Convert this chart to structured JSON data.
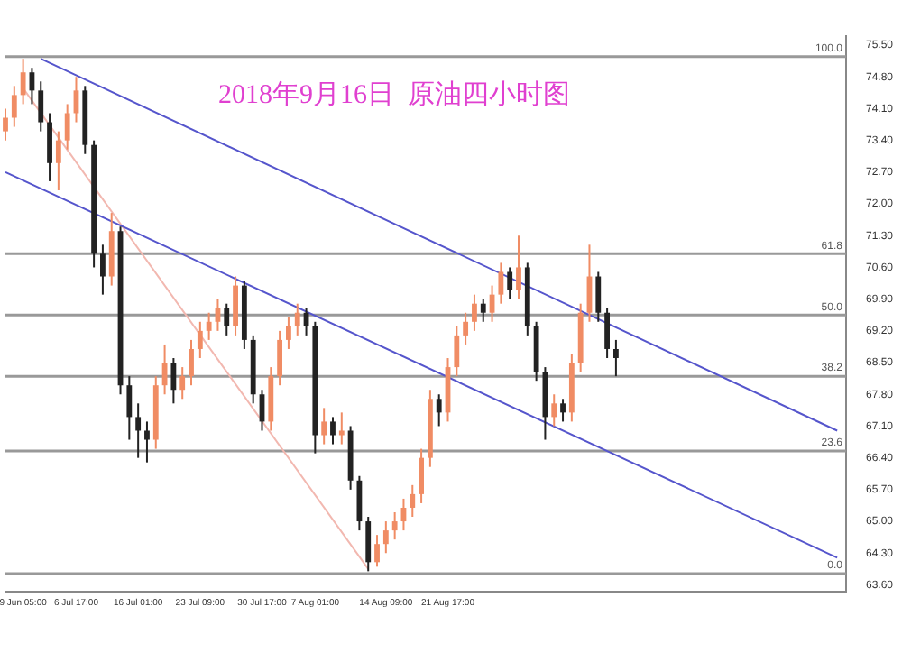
{
  "chart_data": {
    "type": "candlestick",
    "title": "2018年9月16日  原油四小时图",
    "categories": [
      null,
      null,
      "9 Jun 05:00",
      null,
      null,
      null,
      null,
      null,
      "6 Jul 17:00",
      null,
      null,
      null,
      null,
      null,
      null,
      "16 Jul 01:00",
      null,
      null,
      null,
      null,
      null,
      null,
      "23 Jul 09:00",
      null,
      null,
      null,
      null,
      null,
      null,
      "30 Jul 17:00",
      null,
      null,
      null,
      null,
      null,
      "7 Aug 01:00",
      null,
      null,
      null,
      null,
      null,
      null,
      null,
      "14 Aug 09:00",
      null,
      null,
      null,
      null,
      null,
      null,
      "21 Aug 17:00",
      null,
      null,
      null,
      null,
      null,
      null,
      null,
      null,
      null,
      null,
      null,
      null,
      null,
      null,
      null,
      null,
      null,
      null,
      null,
      null,
      null,
      null,
      null,
      null,
      null,
      null,
      null,
      null,
      null,
      null,
      null,
      null,
      null,
      null,
      null,
      null,
      null,
      null,
      null,
      null,
      null,
      null,
      null,
      null,
      null
    ],
    "ohlc": [
      [
        73.6,
        74.1,
        73.4,
        73.9
      ],
      [
        73.9,
        74.6,
        73.7,
        74.4
      ],
      [
        74.4,
        75.2,
        74.2,
        74.9
      ],
      [
        74.9,
        75.0,
        74.2,
        74.5
      ],
      [
        74.5,
        74.7,
        73.6,
        73.8
      ],
      [
        73.8,
        74.0,
        72.5,
        72.9
      ],
      [
        72.9,
        73.6,
        72.3,
        73.4
      ],
      [
        73.4,
        74.2,
        73.2,
        74.0
      ],
      [
        74.0,
        74.8,
        73.8,
        74.5
      ],
      [
        74.5,
        74.6,
        73.1,
        73.3
      ],
      [
        73.3,
        73.4,
        70.6,
        70.9
      ],
      [
        70.9,
        71.1,
        70.0,
        70.4
      ],
      [
        70.4,
        71.8,
        70.2,
        71.4
      ],
      [
        71.4,
        71.5,
        67.8,
        68.0
      ],
      [
        68.0,
        68.2,
        66.8,
        67.3
      ],
      [
        67.3,
        67.6,
        66.4,
        67.0
      ],
      [
        67.0,
        67.2,
        66.3,
        66.8
      ],
      [
        66.8,
        68.2,
        66.6,
        68.0
      ],
      [
        68.0,
        68.9,
        67.8,
        68.5
      ],
      [
        68.5,
        68.6,
        67.6,
        67.9
      ],
      [
        67.9,
        68.4,
        67.7,
        68.2
      ],
      [
        68.2,
        69.0,
        68.0,
        68.8
      ],
      [
        68.8,
        69.4,
        68.6,
        69.2
      ],
      [
        69.2,
        69.6,
        69.0,
        69.4
      ],
      [
        69.4,
        69.9,
        69.2,
        69.7
      ],
      [
        69.7,
        69.8,
        69.1,
        69.3
      ],
      [
        69.3,
        70.4,
        69.1,
        70.2
      ],
      [
        70.2,
        70.3,
        68.8,
        69.0
      ],
      [
        69.0,
        69.1,
        67.6,
        67.8
      ],
      [
        67.8,
        67.9,
        67.0,
        67.2
      ],
      [
        67.2,
        68.4,
        67.0,
        68.2
      ],
      [
        68.2,
        69.2,
        68.0,
        69.0
      ],
      [
        69.0,
        69.5,
        68.8,
        69.3
      ],
      [
        69.3,
        69.8,
        69.1,
        69.6
      ],
      [
        69.6,
        69.7,
        69.1,
        69.3
      ],
      [
        69.3,
        69.4,
        66.5,
        66.9
      ],
      [
        66.9,
        67.5,
        66.7,
        67.2
      ],
      [
        67.2,
        67.3,
        66.7,
        66.9
      ],
      [
        66.9,
        67.4,
        66.7,
        67.0
      ],
      [
        67.0,
        67.1,
        65.7,
        65.9
      ],
      [
        65.9,
        66.0,
        64.8,
        65.0
      ],
      [
        65.0,
        65.1,
        63.9,
        64.1
      ],
      [
        64.1,
        64.7,
        64.0,
        64.5
      ],
      [
        64.5,
        65.0,
        64.3,
        64.8
      ],
      [
        64.8,
        65.2,
        64.6,
        65.0
      ],
      [
        65.0,
        65.5,
        64.8,
        65.3
      ],
      [
        65.3,
        65.8,
        65.1,
        65.6
      ],
      [
        65.6,
        66.6,
        65.4,
        66.4
      ],
      [
        66.4,
        67.9,
        66.2,
        67.7
      ],
      [
        67.7,
        67.8,
        67.1,
        67.4
      ],
      [
        67.4,
        68.6,
        67.2,
        68.4
      ],
      [
        68.4,
        69.3,
        68.2,
        69.1
      ],
      [
        69.1,
        69.6,
        68.9,
        69.4
      ],
      [
        69.4,
        70.0,
        69.2,
        69.8
      ],
      [
        69.8,
        69.9,
        69.4,
        69.6
      ],
      [
        69.6,
        70.2,
        69.4,
        70.0
      ],
      [
        70.0,
        70.7,
        69.8,
        70.5
      ],
      [
        70.5,
        70.6,
        69.9,
        70.1
      ],
      [
        70.1,
        71.3,
        69.9,
        70.6
      ],
      [
        70.6,
        70.7,
        69.1,
        69.3
      ],
      [
        69.3,
        69.4,
        68.1,
        68.3
      ],
      [
        68.3,
        68.4,
        66.8,
        67.3
      ],
      [
        67.3,
        67.8,
        67.1,
        67.6
      ],
      [
        67.6,
        67.7,
        67.2,
        67.4
      ],
      [
        67.4,
        68.7,
        67.2,
        68.5
      ],
      [
        68.5,
        69.8,
        68.3,
        69.6
      ],
      [
        69.6,
        71.1,
        69.4,
        70.4
      ],
      [
        70.4,
        70.5,
        69.4,
        69.6
      ],
      [
        69.6,
        69.7,
        68.6,
        68.8
      ],
      [
        68.8,
        69.0,
        68.2,
        68.6
      ],
      null,
      null,
      null,
      null,
      null,
      null,
      null,
      null,
      null,
      null,
      null,
      null,
      null,
      null,
      null,
      null,
      null,
      null,
      null,
      null,
      null,
      null,
      null,
      null,
      null,
      null
    ],
    "colors": [
      "#f08c64",
      "#f08c64",
      "#f08c64",
      "#222222",
      "#222222",
      "#222222",
      "#f08c64",
      "#f08c64",
      "#f08c64",
      "#222222",
      "#222222",
      "#222222",
      "#f08c64",
      "#222222",
      "#222222",
      "#222222",
      "#222222",
      "#f08c64",
      "#f08c64",
      "#222222",
      "#f08c64",
      "#f08c64",
      "#f08c64",
      "#f08c64",
      "#f08c64",
      "#222222",
      "#f08c64",
      "#222222",
      "#222222",
      "#222222",
      "#f08c64",
      "#f08c64",
      "#f08c64",
      "#f08c64",
      "#222222",
      "#222222",
      "#f08c64",
      "#222222",
      "#f08c64",
      "#222222",
      "#222222",
      "#222222",
      "#f08c64",
      "#f08c64",
      "#f08c64",
      "#f08c64",
      "#f08c64",
      "#f08c64",
      "#f08c64",
      "#222222",
      "#f08c64",
      "#f08c64",
      "#f08c64",
      "#f08c64",
      "#222222",
      "#f08c64",
      "#f08c64",
      "#222222",
      "#f08c64",
      "#222222",
      "#222222",
      "#222222",
      "#f08c64",
      "#222222",
      "#f08c64",
      "#f08c64",
      "#f08c64",
      "#222222",
      "#222222",
      "#222222",
      null,
      null,
      null,
      null,
      null,
      null,
      null,
      null,
      null,
      null,
      null,
      null,
      null,
      null,
      null,
      null,
      null,
      null,
      null,
      null,
      null,
      null,
      null,
      null,
      null,
      null
    ],
    "series": [
      {
        "type": "line",
        "color": "#5555cc",
        "values": [
          null,
          null,
          null,
          null,
          75.2,
          null,
          null,
          null,
          null,
          null,
          null,
          null,
          null,
          null,
          null,
          null,
          null,
          null,
          null,
          null,
          null,
          null,
          null,
          null,
          null,
          null,
          null,
          null,
          null,
          null,
          null,
          null,
          null,
          null,
          null,
          null,
          null,
          null,
          null,
          null,
          null,
          null,
          null,
          null,
          null,
          null,
          null,
          null,
          null,
          null,
          null,
          null,
          null,
          null,
          null,
          null,
          null,
          null,
          null,
          null,
          null,
          null,
          null,
          null,
          null,
          null,
          null,
          null,
          null,
          null,
          null,
          null,
          null,
          null,
          null,
          null,
          null,
          null,
          null,
          null,
          null,
          null,
          null,
          null,
          null,
          null,
          null,
          null,
          null,
          null,
          null,
          null,
          null,
          null,
          67.0,
          null
        ]
      },
      {
        "type": "line",
        "color": "#5555cc",
        "values": [
          72.7,
          null,
          null,
          null,
          null,
          null,
          null,
          null,
          null,
          null,
          null,
          null,
          null,
          null,
          null,
          null,
          null,
          null,
          null,
          null,
          null,
          null,
          null,
          null,
          null,
          null,
          null,
          null,
          null,
          null,
          null,
          null,
          null,
          null,
          null,
          null,
          null,
          null,
          null,
          null,
          null,
          null,
          null,
          null,
          null,
          null,
          null,
          null,
          null,
          null,
          null,
          null,
          null,
          null,
          null,
          null,
          null,
          null,
          null,
          null,
          null,
          null,
          null,
          null,
          null,
          null,
          null,
          null,
          null,
          null,
          null,
          null,
          null,
          null,
          null,
          null,
          null,
          null,
          null,
          null,
          null,
          null,
          null,
          null,
          null,
          null,
          null,
          null,
          null,
          null,
          null,
          null,
          null,
          null,
          64.2,
          null
        ]
      },
      {
        "type": "line",
        "color": "#f2b8b0",
        "values": [
          null,
          null,
          74.55,
          null,
          null,
          null,
          null,
          null,
          null,
          null,
          null,
          null,
          null,
          null,
          null,
          null,
          null,
          null,
          null,
          null,
          null,
          null,
          null,
          null,
          null,
          null,
          null,
          null,
          null,
          null,
          null,
          null,
          null,
          null,
          null,
          null,
          null,
          null,
          null,
          null,
          null,
          63.95,
          null,
          null,
          null,
          null,
          null,
          null,
          null,
          null,
          null,
          null,
          null,
          null,
          null,
          null,
          null,
          null,
          null,
          null,
          null,
          null,
          null,
          null,
          null,
          null,
          null,
          null,
          null,
          null,
          null,
          null,
          null,
          null,
          null,
          null,
          null,
          null,
          null,
          null,
          null,
          null,
          null,
          null,
          null,
          null,
          null,
          null,
          null,
          null,
          null,
          null,
          null,
          null,
          null,
          null
        ]
      }
    ],
    "ref_lines": [
      {
        "axis": "y",
        "value": 75.25,
        "color": "#999999"
      },
      {
        "axis": "y",
        "value": 70.9,
        "color": "#999999"
      },
      {
        "axis": "y",
        "value": 69.55,
        "color": "#999999"
      },
      {
        "axis": "y",
        "value": 68.2,
        "color": "#999999"
      },
      {
        "axis": "y",
        "value": 66.55,
        "color": "#999999"
      },
      {
        "axis": "y",
        "value": 63.85,
        "color": "#999999"
      }
    ],
    "annotations": [
      {
        "text": "100.0",
        "y": 75.25
      },
      {
        "text": "61.8",
        "y": 70.9
      },
      {
        "text": "50.0",
        "y": 69.55
      },
      {
        "text": "38.2",
        "y": 68.2
      },
      {
        "text": "23.6",
        "y": 66.55
      },
      {
        "text": "0.0",
        "y": 63.85
      }
    ],
    "ylim": [
      63.45,
      75.7
    ],
    "yticks": [
      {
        "value": 75.5,
        "label": "75.50"
      },
      {
        "value": 74.8,
        "label": "74.80"
      },
      {
        "value": 74.1,
        "label": "74.10"
      },
      {
        "value": 73.4,
        "label": "73.40"
      },
      {
        "value": 72.7,
        "label": "72.70"
      },
      {
        "value": 72,
        "label": "72.00"
      },
      {
        "value": 71.3,
        "label": "71.30"
      },
      {
        "value": 70.6,
        "label": "70.60"
      },
      {
        "value": 69.9,
        "label": "69.90"
      },
      {
        "value": 69.2,
        "label": "69.20"
      },
      {
        "value": 68.5,
        "label": "68.50"
      },
      {
        "value": 67.8,
        "label": "67.80"
      },
      {
        "value": 67.1,
        "label": "67.10"
      },
      {
        "value": 66.4,
        "label": "66.40"
      },
      {
        "value": 65.7,
        "label": "65.70"
      },
      {
        "value": 65,
        "label": "65.00"
      },
      {
        "value": 64.3,
        "label": "64.30"
      },
      {
        "value": 63.6,
        "label": "63.60"
      }
    ],
    "grid": false,
    "legend": false
  }
}
